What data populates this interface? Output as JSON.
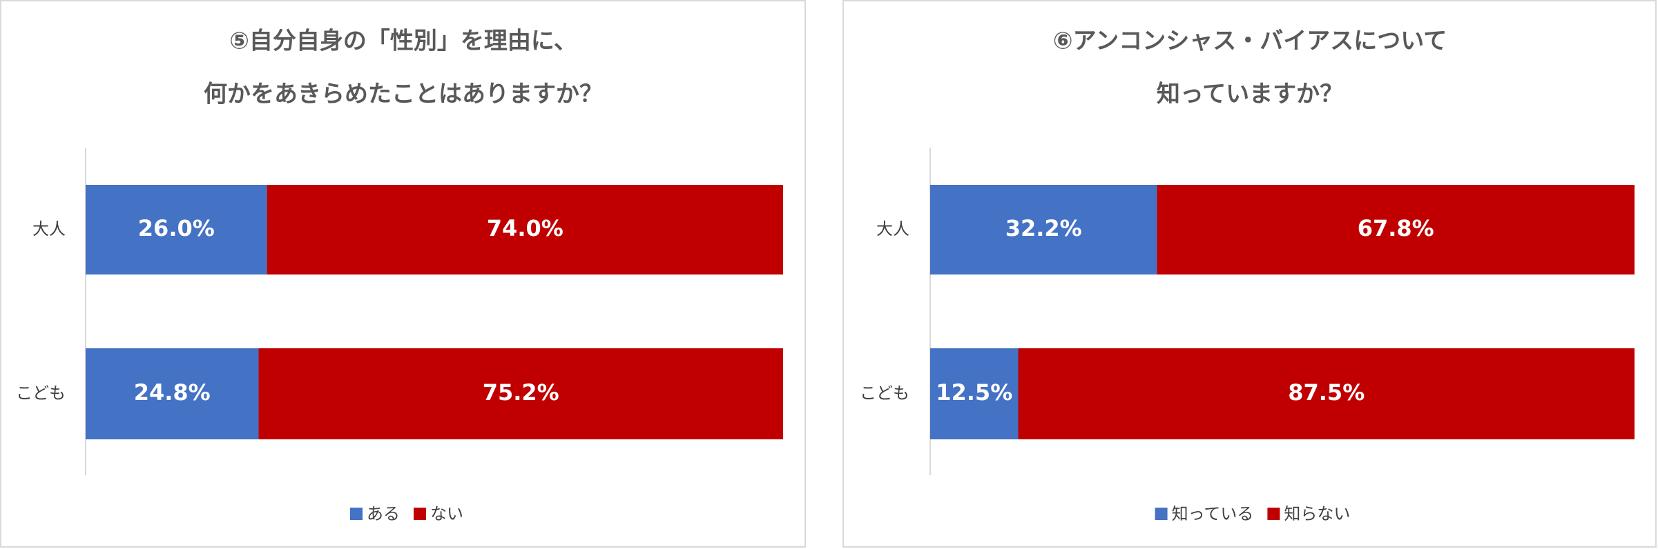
{
  "chart_data": [
    {
      "type": "stacked-bar-horizontal",
      "title": [
        "⑤自分自身の「性別」を理由に、",
        "何かをあきらめたことはありますか？"
      ],
      "categories": [
        "大人",
        "こども"
      ],
      "series": [
        {
          "name": "ある",
          "color": "#4472c4",
          "values": [
            26.0,
            24.8
          ],
          "value_labels": [
            "26.0%",
            "24.8%"
          ]
        },
        {
          "name": "ない",
          "color": "#c00000",
          "values": [
            74.0,
            75.2
          ],
          "value_labels": [
            "74.0%",
            "75.2%"
          ]
        }
      ],
      "legend": "bottom"
    },
    {
      "type": "stacked-bar-horizontal",
      "title": [
        "⑥アンコンシャス・バイアスについて",
        "知っていますか？"
      ],
      "categories": [
        "大人",
        "こども"
      ],
      "series": [
        {
          "name": "知っている",
          "color": "#4472c4",
          "values": [
            32.2,
            12.5
          ],
          "value_labels": [
            "32.2%",
            "12.5%"
          ]
        },
        {
          "name": "知らない",
          "color": "#c00000",
          "values": [
            67.8,
            87.5
          ],
          "value_labels": [
            "67.8%",
            "87.5%"
          ]
        }
      ],
      "legend": "bottom"
    }
  ]
}
